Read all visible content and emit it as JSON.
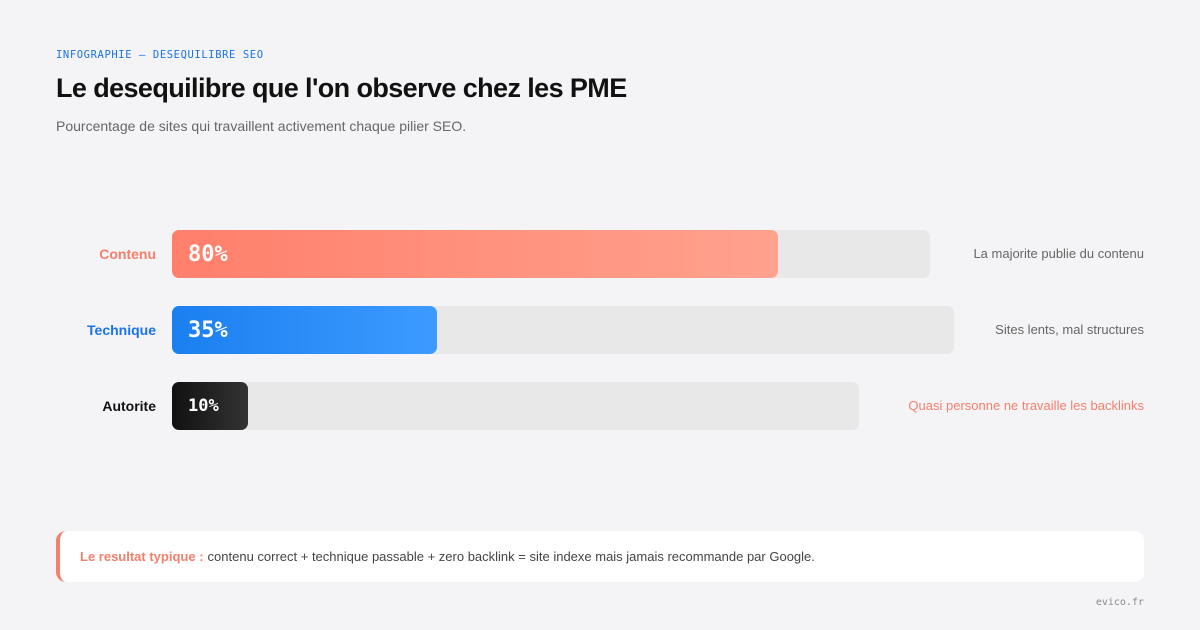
{
  "header": {
    "eyebrow": "INFOGRAPHIE — DESEQUILIBRE SEO",
    "title": "Le desequilibre que l'on observe chez les PME",
    "subtitle": "Pourcentage de sites qui travaillent activement chaque pilier SEO."
  },
  "chart_data": {
    "type": "bar",
    "orientation": "horizontal",
    "title": "Le desequilibre que l'on observe chez les PME",
    "subtitle": "Pourcentage de sites qui travaillent activement chaque pilier SEO.",
    "categories": [
      "Contenu",
      "Technique",
      "Autorite"
    ],
    "values": [
      80,
      35,
      10
    ],
    "value_labels": [
      "80%",
      "35%",
      "10%"
    ],
    "notes": [
      "La majorite publie du contenu",
      "Sites lents, mal structures",
      "Quasi personne ne travaille les backlinks"
    ],
    "xlim": [
      0,
      100
    ],
    "unit": "%",
    "colors": {
      "Contenu": [
        "#ff7f6b",
        "#ffa28e"
      ],
      "Technique": [
        "#1a7ff0",
        "#3d9bff"
      ],
      "Autorite": [
        "#111111",
        "#333333"
      ],
      "track": "#e8e8e8"
    },
    "label_colors": [
      "#f57f6c",
      "#1a73e8",
      "#111111"
    ],
    "note_colors": [
      "#666666",
      "#666666",
      "#f57f6c"
    ],
    "grid": false,
    "legend": "none"
  },
  "callout": {
    "lead": "Le resultat typique :",
    "text": "contenu correct + technique passable + zero backlink = site indexe mais jamais recommande par Google."
  },
  "footer": "evico.fr"
}
